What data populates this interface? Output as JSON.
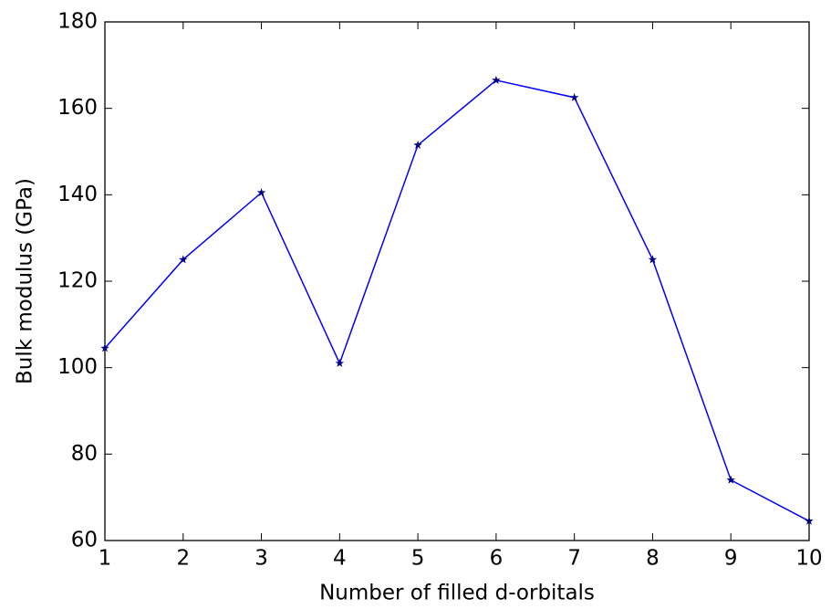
{
  "chart_data": {
    "type": "line",
    "x_label": "Number of filled d-orbitals",
    "y_label": "Bulk modulus (GPa)",
    "x": [
      1,
      2,
      3,
      4,
      5,
      6,
      7,
      8,
      9,
      10
    ],
    "series": [
      {
        "color": "#0000ff",
        "marker_color": "#000080",
        "marker": "star",
        "values": [
          104.5,
          125,
          140.5,
          101,
          151.5,
          166.5,
          162.5,
          125,
          74,
          64.5
        ]
      }
    ],
    "xlim": [
      1,
      10
    ],
    "xticks": [
      1,
      2,
      3,
      4,
      5,
      6,
      7,
      8,
      9,
      10
    ],
    "ylim": [
      60,
      180
    ],
    "yticks": [
      60,
      80,
      100,
      120,
      140,
      160,
      180
    ]
  }
}
